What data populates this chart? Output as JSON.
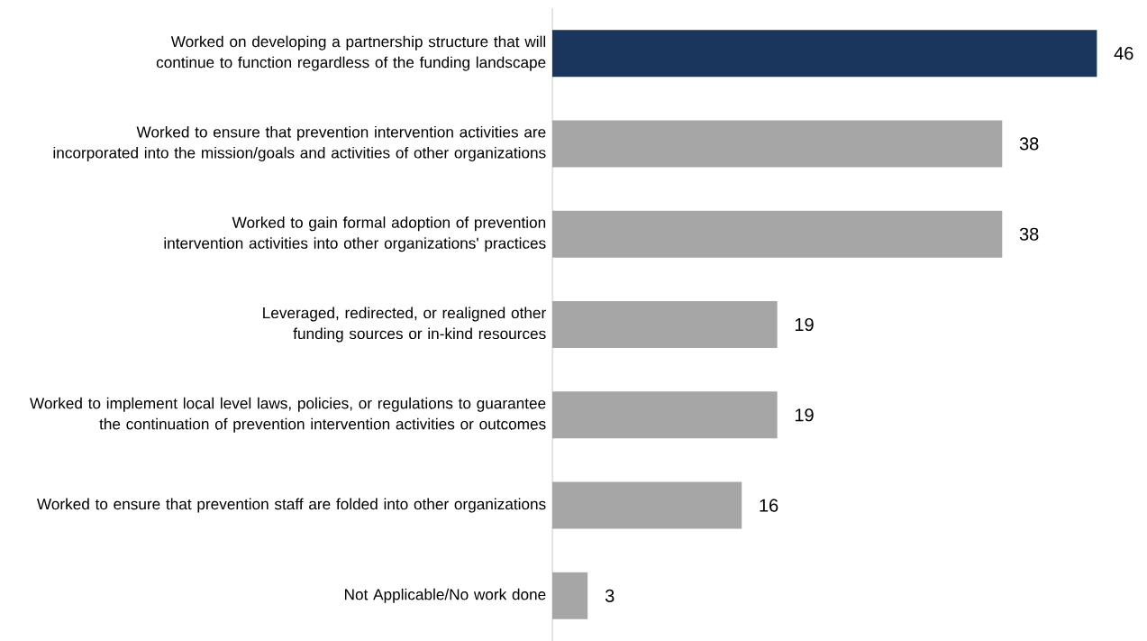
{
  "chart_data": {
    "type": "bar",
    "orientation": "horizontal",
    "categories": [
      "Worked on developing a partnership structure that will continue to function regardless of the funding landscape",
      "Worked to ensure that prevention intervention activities are incorporated into the mission/goals and activities of other organizations",
      "Worked to gain formal adoption of prevention intervention activities into other organizations' practices",
      "Leveraged, redirected, or realigned other funding sources or in-kind resources",
      "Worked to implement local level laws, policies, or regulations to guarantee the continuation of prevention intervention activities or outcomes",
      "Worked to ensure that prevention staff are folded into other organizations",
      "Not Applicable/No work done"
    ],
    "values": [
      46,
      38,
      38,
      19,
      19,
      16,
      3
    ],
    "colors": [
      "#1b365d",
      "#a6a6a6",
      "#a6a6a6",
      "#a6a6a6",
      "#a6a6a6",
      "#a6a6a6",
      "#a6a6a6"
    ],
    "data_labels": true
  }
}
